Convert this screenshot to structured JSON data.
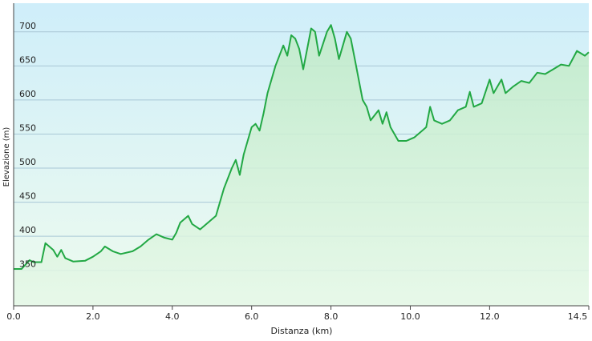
{
  "chart_data": {
    "type": "area-line",
    "xlabel": "Distanza  (km)",
    "ylabel": "Elevazione (m)",
    "color": "#22a844",
    "x": [
      0,
      0.2,
      0.4,
      0.5,
      0.7,
      0.8,
      1.0,
      1.1,
      1.2,
      1.3,
      1.5,
      1.8,
      2.0,
      2.2,
      2.3,
      2.5,
      2.7,
      3.0,
      3.2,
      3.4,
      3.6,
      3.8,
      4.0,
      4.1,
      4.2,
      4.4,
      4.5,
      4.7,
      4.9,
      5.1,
      5.3,
      5.5,
      5.6,
      5.7,
      5.8,
      6.0,
      6.1,
      6.2,
      6.3,
      6.4,
      6.6,
      6.8,
      6.9,
      7.0,
      7.1,
      7.2,
      7.3,
      7.5,
      7.6,
      7.7,
      7.9,
      8.0,
      8.1,
      8.2,
      8.4,
      8.5,
      8.6,
      8.7,
      8.8,
      8.9,
      9.0,
      9.2,
      9.3,
      9.4,
      9.5,
      9.7,
      9.9,
      10.1,
      10.3,
      10.4,
      10.5,
      10.6,
      10.8,
      11.0,
      11.2,
      11.4,
      11.5,
      11.6,
      11.8,
      12.0,
      12.1,
      12.3,
      12.4,
      12.6,
      12.8,
      13.0,
      13.2,
      13.4,
      13.6,
      13.8,
      14.0,
      14.2,
      14.4,
      14.5
    ],
    "values": [
      352,
      352,
      365,
      362,
      362,
      390,
      380,
      370,
      380,
      368,
      363,
      364,
      370,
      378,
      385,
      378,
      374,
      378,
      385,
      395,
      403,
      398,
      395,
      405,
      420,
      430,
      418,
      410,
      420,
      430,
      470,
      500,
      512,
      490,
      520,
      560,
      565,
      555,
      580,
      610,
      650,
      680,
      665,
      695,
      690,
      675,
      645,
      705,
      700,
      665,
      700,
      710,
      690,
      660,
      700,
      690,
      660,
      630,
      600,
      590,
      570,
      585,
      565,
      582,
      560,
      540,
      540,
      545,
      555,
      560,
      590,
      570,
      565,
      570,
      585,
      590,
      612,
      590,
      595,
      630,
      610,
      630,
      610,
      620,
      628,
      625,
      640,
      638,
      645,
      652,
      650,
      672,
      665,
      670
    ],
    "xlim": [
      0,
      14.5
    ],
    "xticks": [
      {
        "value": 0,
        "label": "0.0"
      },
      {
        "value": 2,
        "label": "2.0"
      },
      {
        "value": 4,
        "label": "4.0"
      },
      {
        "value": 6,
        "label": "6.0"
      },
      {
        "value": 8,
        "label": "8.0"
      },
      {
        "value": 10,
        "label": "10.0"
      },
      {
        "value": 12,
        "label": "12.0"
      },
      14.5
    ],
    "ylim": [
      298,
      742
    ],
    "yticks": [
      350,
      400,
      450,
      500,
      550,
      600,
      650,
      700
    ],
    "grid": true
  }
}
